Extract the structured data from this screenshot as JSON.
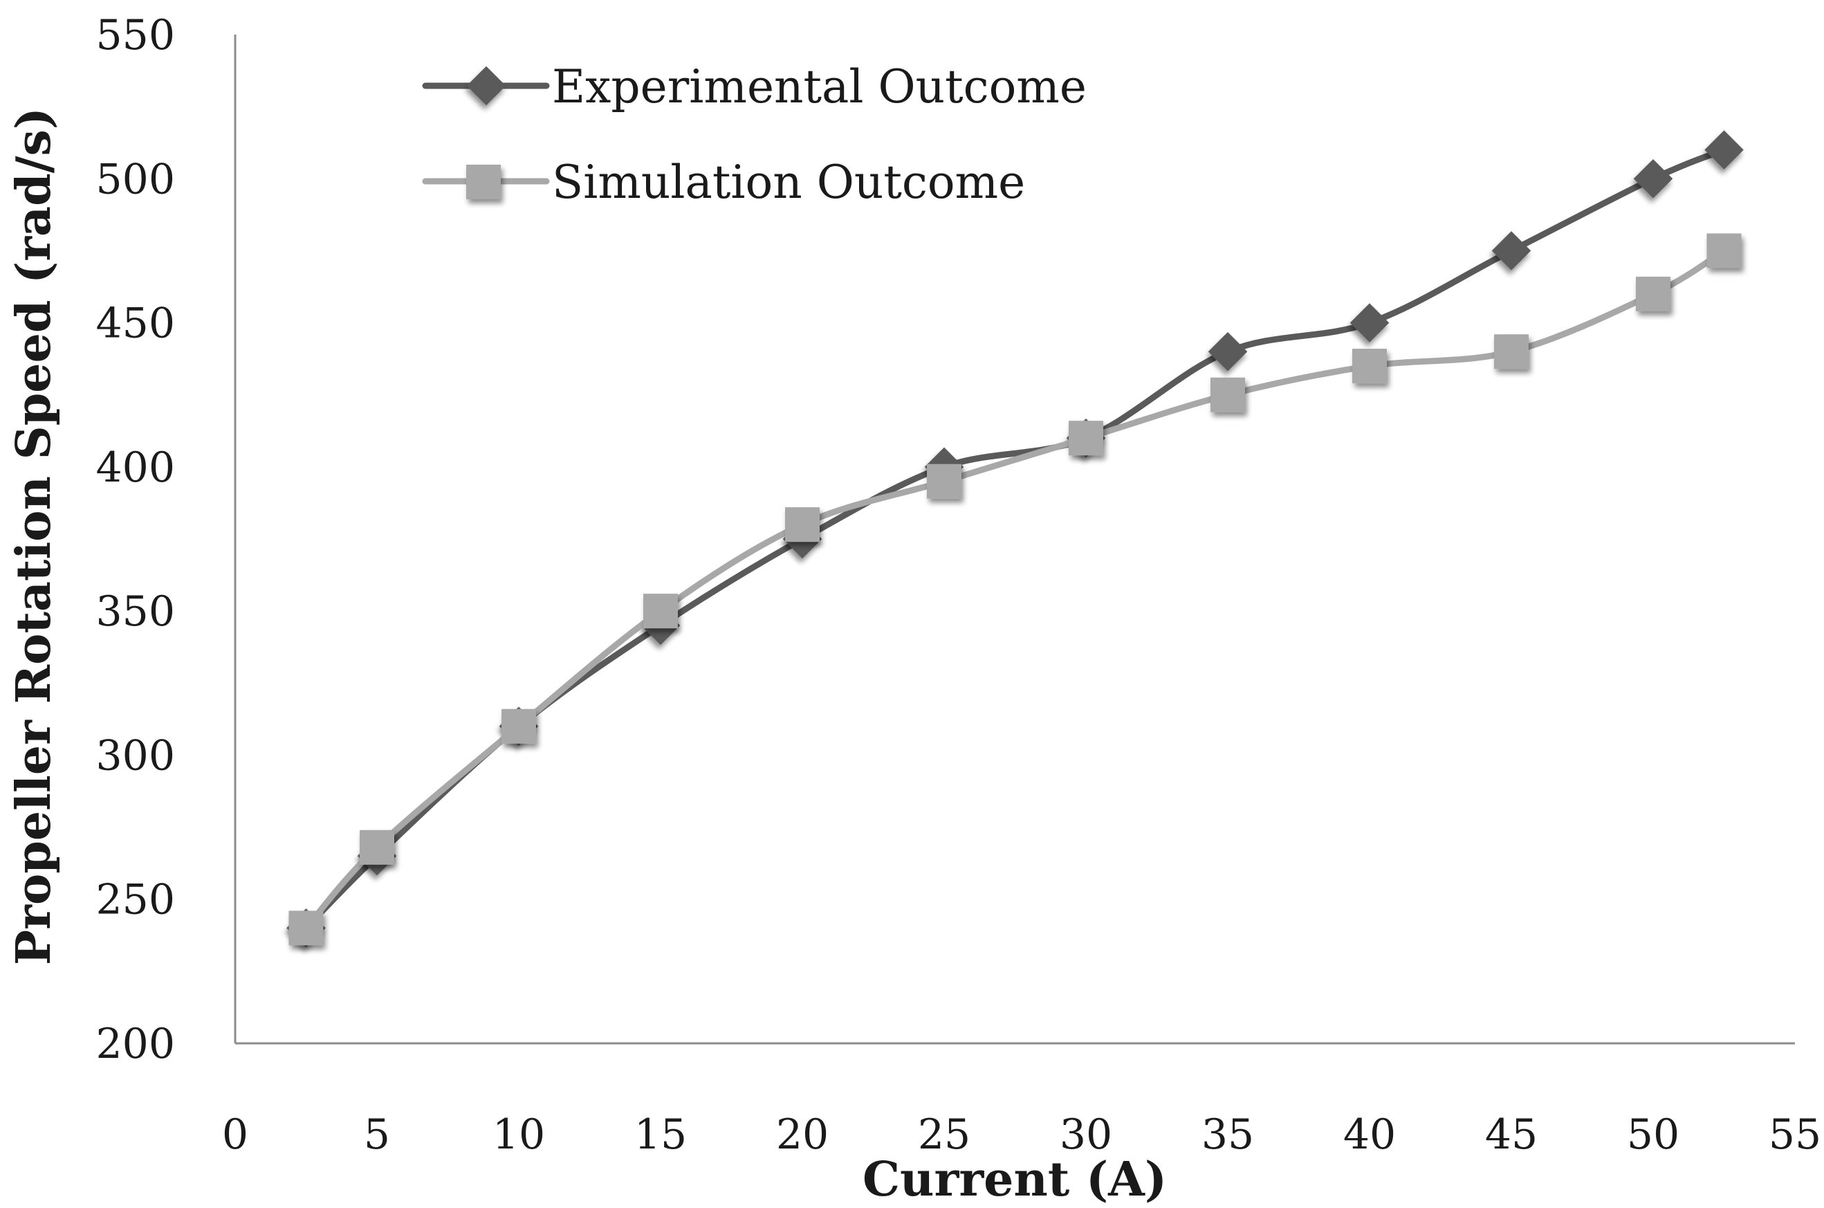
{
  "chart_data": {
    "type": "line",
    "title": "",
    "xlabel": "Current (A)",
    "ylabel": "Propeller Rotation Speed (rad/s)",
    "xlim": [
      0,
      55
    ],
    "ylim": [
      200,
      550
    ],
    "x_ticks": [
      0,
      5,
      10,
      15,
      20,
      25,
      30,
      35,
      40,
      45,
      50,
      55
    ],
    "y_ticks": [
      200,
      250,
      300,
      350,
      400,
      450,
      500,
      550
    ],
    "grid": false,
    "legend_position": "top-left",
    "series": [
      {
        "name": "Experimental Outcome",
        "color": "#5a5a5a",
        "marker": "diamond",
        "x": [
          2.5,
          5,
          10,
          15,
          20,
          25,
          30,
          35,
          40,
          45,
          50,
          52.5
        ],
        "values": [
          240,
          265,
          310,
          345,
          375,
          400,
          410,
          440,
          450,
          475,
          500,
          510
        ]
      },
      {
        "name": "Simulation Outcome",
        "color": "#a8a8a8",
        "marker": "square",
        "x": [
          2.5,
          5,
          10,
          15,
          20,
          25,
          30,
          35,
          40,
          45,
          50,
          52.5
        ],
        "values": [
          240,
          268,
          310,
          350,
          380,
          395,
          410,
          425,
          435,
          440,
          460,
          475
        ]
      }
    ]
  }
}
